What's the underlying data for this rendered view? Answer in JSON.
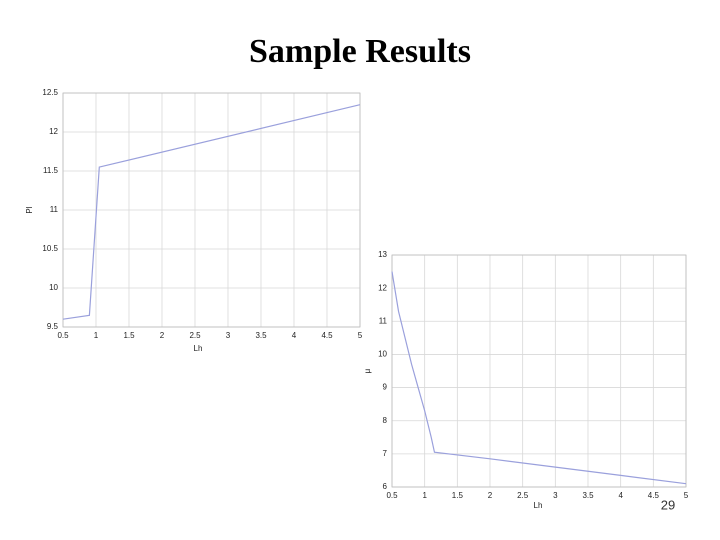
{
  "title": "Sample Results",
  "page_number": "29",
  "chart_data": [
    {
      "type": "line",
      "x_label": "Lh",
      "y_label": "Pl",
      "color": "#9aa0dc",
      "grid": true,
      "x": [
        0.5,
        0.9,
        1.05,
        5
      ],
      "values": [
        9.6,
        9.65,
        11.55,
        12.35
      ],
      "xlim": [
        0.5,
        5
      ],
      "ylim": [
        9.5,
        12.5
      ],
      "xticks": [
        0.5,
        1,
        1.5,
        2,
        2.5,
        3,
        3.5,
        4,
        4.5,
        5
      ],
      "yticks": [
        9.5,
        10,
        10.5,
        11,
        11.5,
        12,
        12.5
      ]
    },
    {
      "type": "line",
      "x_label": "Lh",
      "y_label": "μ",
      "color": "#9aa0dc",
      "grid": true,
      "x": [
        0.5,
        0.6,
        0.7,
        0.8,
        0.9,
        1,
        1.1,
        1.15,
        2,
        3,
        4,
        5
      ],
      "values": [
        12.5,
        11.3,
        10.5,
        9.7,
        9,
        8.3,
        7.5,
        7.05,
        6.85,
        6.6,
        6.35,
        6.1
      ],
      "xlim": [
        0.5,
        5
      ],
      "ylim": [
        6,
        13
      ],
      "xticks": [
        0.5,
        1,
        1.5,
        2,
        2.5,
        3,
        3.5,
        4,
        4.5,
        5
      ],
      "yticks": [
        6,
        7,
        8,
        9,
        10,
        11,
        12,
        13
      ]
    }
  ]
}
